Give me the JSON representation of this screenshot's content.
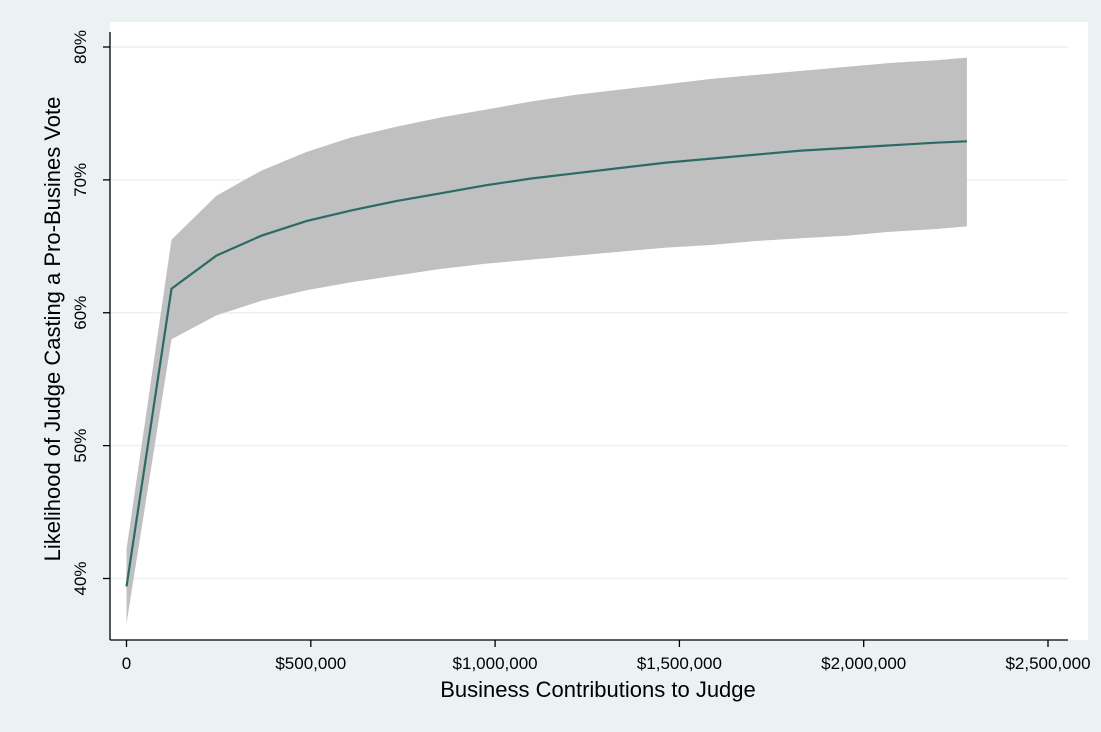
{
  "chart_data": {
    "type": "line",
    "title": "",
    "xlabel": "Business Contributions to Judge",
    "ylabel": "Likelihood of Judge Casting a Pro-Busines Vote",
    "xlim": [
      -30000,
      2550000
    ],
    "ylim": [
      35.0,
      81.0
    ],
    "x_ticks": [
      0,
      500000,
      1000000,
      1500000,
      2000000,
      2500000
    ],
    "x_tick_labels": [
      "0",
      "$500,000",
      "$1,000,000",
      "$1,500,000",
      "$2,000,000",
      "$2,500,000"
    ],
    "y_ticks": [
      40,
      50,
      60,
      70,
      80
    ],
    "y_tick_labels": [
      "40%",
      "50%",
      "60%",
      "70%",
      "80%"
    ],
    "grid": true,
    "legend": "none",
    "colors": {
      "plot_background": "#ffffff",
      "outer_background": "#eaf2f3",
      "band": "#c0c0c0",
      "line": "#2b6b63",
      "grid": "#e9f1f2",
      "axis": "#000000"
    },
    "series": [
      {
        "x": [
          0,
          122000,
          244000,
          366000,
          488000,
          610000,
          732000,
          854000,
          976000,
          1098000,
          1220000,
          1342000,
          1464000,
          1586000,
          1708000,
          1830000,
          1952000,
          2074000,
          2196000,
          2280000
        ],
        "y": [
          39.4,
          61.8,
          64.3,
          65.8,
          66.9,
          67.7,
          68.4,
          69.0,
          69.6,
          70.1,
          70.5,
          70.9,
          71.3,
          71.6,
          71.9,
          72.2,
          72.4,
          72.6,
          72.8,
          72.9
        ],
        "upper": [
          42.2,
          65.5,
          68.8,
          70.7,
          72.1,
          73.2,
          74.0,
          74.7,
          75.3,
          75.9,
          76.4,
          76.8,
          77.2,
          77.6,
          77.9,
          78.2,
          78.5,
          78.8,
          79.0,
          79.2
        ],
        "lower": [
          36.6,
          58.0,
          59.8,
          60.9,
          61.7,
          62.3,
          62.8,
          63.3,
          63.7,
          64.0,
          64.3,
          64.6,
          64.9,
          65.1,
          65.4,
          65.6,
          65.8,
          66.1,
          66.3,
          66.5
        ]
      }
    ]
  }
}
